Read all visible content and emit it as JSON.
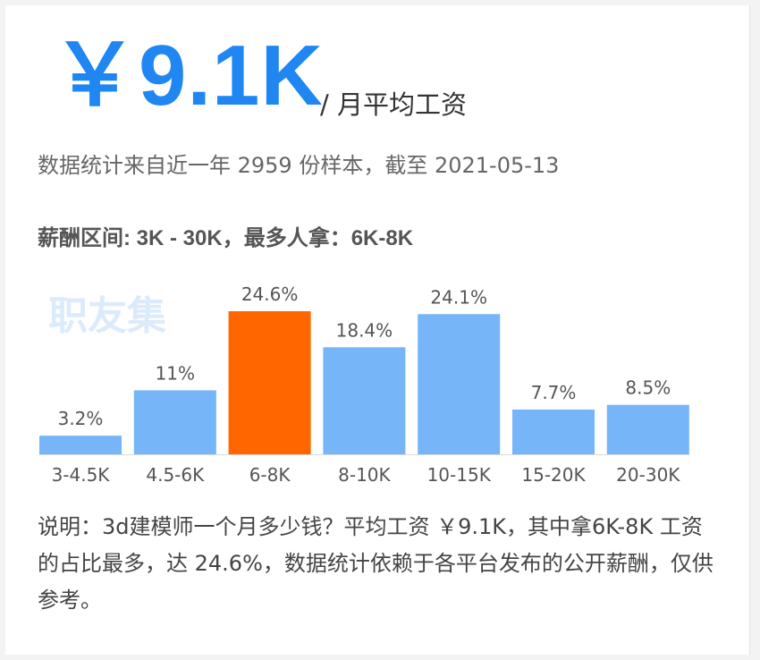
{
  "header": {
    "avg_value": "￥9.1K",
    "avg_suffix_sep": "/",
    "avg_suffix": "月平均工资"
  },
  "sample_text": "数据统计来自近一年 2959 份样本，截至 2021-05-13",
  "range_text": "薪酬区间: 3K - 30K，最多人拿：6K-8K",
  "watermark_text": "职友集",
  "chart_data": {
    "type": "bar",
    "title": "",
    "xlabel": "",
    "ylabel": "",
    "categories": [
      "3-4.5K",
      "4.5-6K",
      "6-8K",
      "8-10K",
      "10-15K",
      "15-20K",
      "20-30K"
    ],
    "values": [
      3.2,
      11,
      24.6,
      18.4,
      24.1,
      7.7,
      8.5
    ],
    "value_labels": [
      "3.2%",
      "11%",
      "24.6%",
      "18.4%",
      "24.1%",
      "7.7%",
      "8.5%"
    ],
    "ylim": [
      0,
      24.6
    ],
    "grid": false,
    "highlight_index": 2,
    "colors": {
      "bar": "#76b5f7",
      "highlight": "#ff6600",
      "baseline": "#d9d9d9",
      "label": "#555555"
    }
  },
  "note_text": "说明：3d建模师一个月多少钱？平均工资 ￥9.1K，其中拿6K-8K 工资的占比最多，达 24.6%，数据统计依赖于各平台发布的公开薪酬，仅供参考。"
}
